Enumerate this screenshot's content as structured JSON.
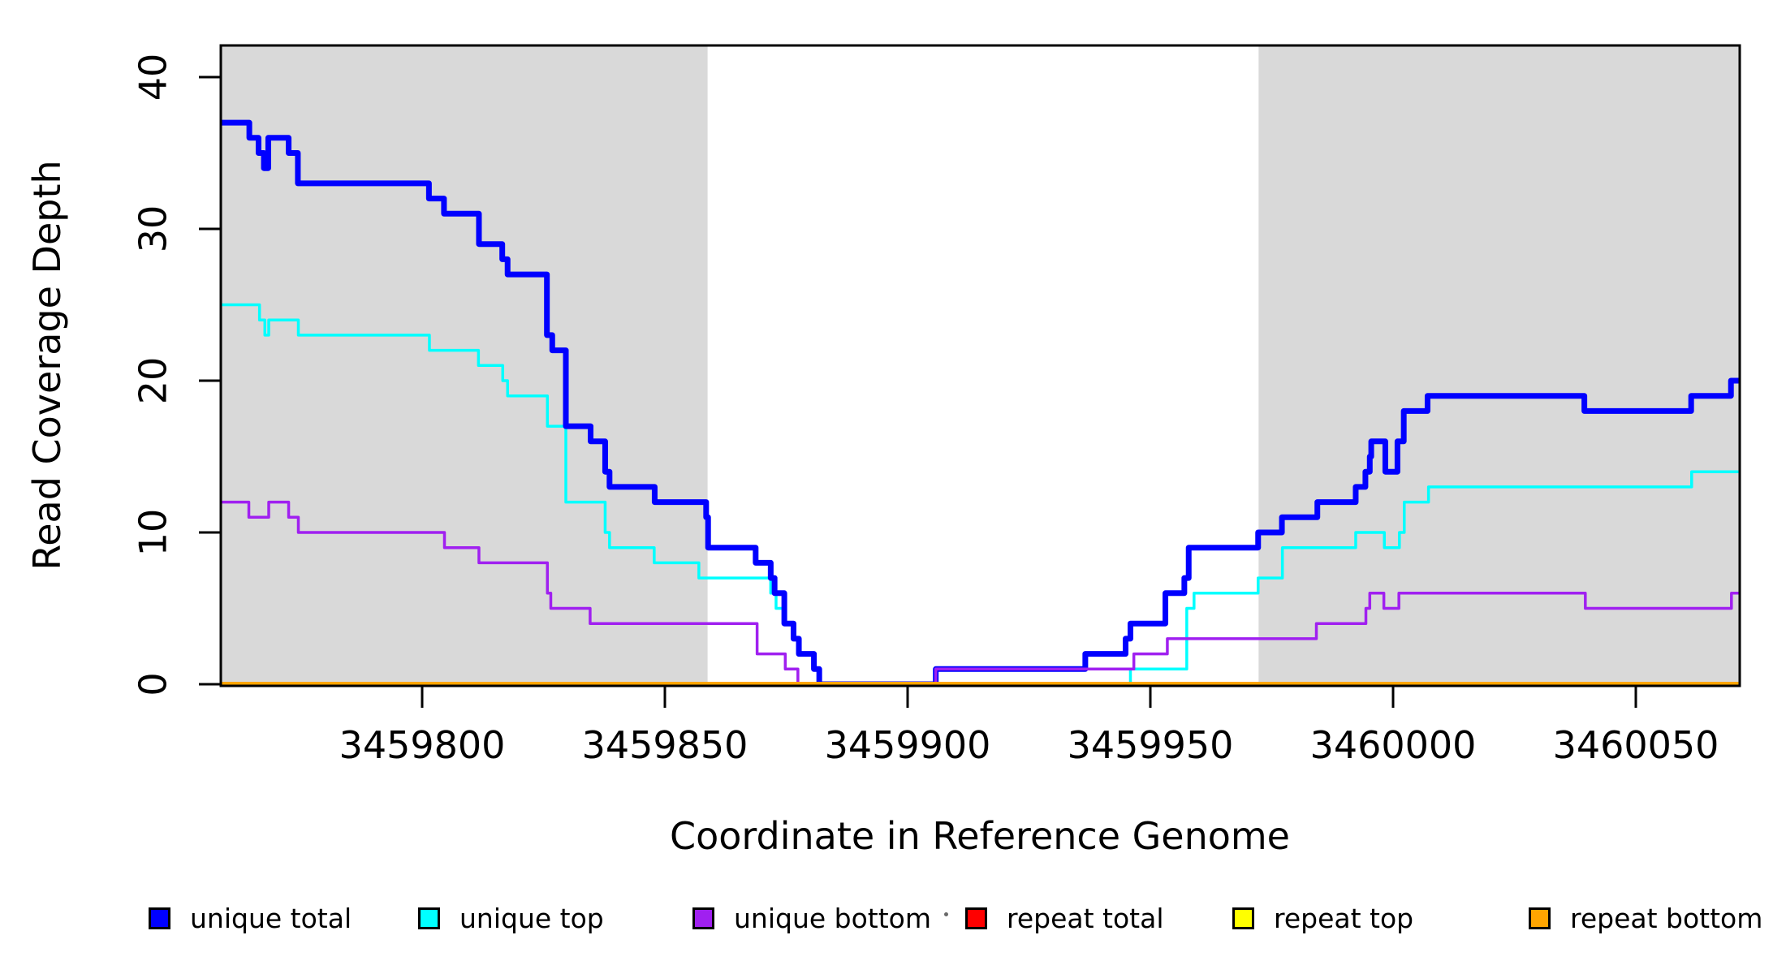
{
  "chart_data": {
    "type": "line",
    "subtype": "step",
    "title": "",
    "xlabel": "Coordinate in Reference Genome",
    "ylabel": "Read Coverage Depth",
    "xlim": [
      3459758.4,
      3460072.0
    ],
    "ylim": [
      0,
      42
    ],
    "x_ticks": [
      3459800,
      3459850,
      3459900,
      3459950,
      3460000,
      3460050
    ],
    "y_ticks": [
      0,
      10,
      20,
      30,
      40
    ],
    "grid": false,
    "plot_bg": "#ffffff",
    "shaded_region_color": "#d9d9d9",
    "background_regions": [
      {
        "name": "shaded-region-left",
        "x0": 3459758.4,
        "x1": 3459858.8
      },
      {
        "name": "shaded-region-right",
        "x0": 3459972.3,
        "x1": 3460072.0
      }
    ],
    "series": [
      {
        "name": "unique total",
        "color": "#0000ff",
        "width": 7,
        "points": [
          [
            3459758.4,
            37
          ],
          [
            3459764.4,
            36
          ],
          [
            3459766.3,
            35
          ],
          [
            3459767.4,
            34
          ],
          [
            3459768.3,
            36
          ],
          [
            3459772.5,
            35
          ],
          [
            3459774.4,
            33
          ],
          [
            3459801.4,
            32
          ],
          [
            3459804.5,
            31
          ],
          [
            3459811.7,
            29
          ],
          [
            3459816.5,
            28
          ],
          [
            3459817.6,
            27
          ],
          [
            3459825.7,
            23
          ],
          [
            3459826.8,
            22
          ],
          [
            3459829.6,
            17
          ],
          [
            3459834.7,
            16
          ],
          [
            3459837.7,
            14
          ],
          [
            3459838.6,
            13
          ],
          [
            3459847.9,
            12
          ],
          [
            3459858.5,
            11
          ],
          [
            3459858.9,
            9
          ],
          [
            3459868.7,
            8
          ],
          [
            3459871.8,
            7
          ],
          [
            3459872.6,
            6
          ],
          [
            3459874.6,
            4
          ],
          [
            3459876.5,
            3
          ],
          [
            3459877.6,
            2
          ],
          [
            3459880.7,
            1
          ],
          [
            3459881.8,
            0
          ],
          [
            3459905.8,
            1
          ],
          [
            3459936.6,
            2
          ],
          [
            3459944.9,
            3
          ],
          [
            3459945.9,
            4
          ],
          [
            3459953.1,
            6
          ],
          [
            3459957.0,
            7
          ],
          [
            3459957.9,
            9
          ],
          [
            3459972.2,
            10
          ],
          [
            3459977.1,
            11
          ],
          [
            3459984.4,
            12
          ],
          [
            3459992.3,
            13
          ],
          [
            3459994.3,
            14
          ],
          [
            3459995.2,
            15
          ],
          [
            3459995.5,
            16
          ],
          [
            3459998.4,
            14
          ],
          [
            3460000.9,
            16
          ],
          [
            3460002.2,
            18
          ],
          [
            3460007.1,
            19
          ],
          [
            3460039.4,
            18
          ],
          [
            3460061.4,
            19
          ],
          [
            3460069.6,
            20
          ]
        ]
      },
      {
        "name": "unique top",
        "color": "#00ffff",
        "width": 3.5,
        "points": [
          [
            3459758.4,
            25
          ],
          [
            3459766.5,
            24
          ],
          [
            3459767.6,
            23
          ],
          [
            3459768.4,
            24
          ],
          [
            3459774.5,
            23
          ],
          [
            3459801.5,
            22
          ],
          [
            3459811.6,
            21
          ],
          [
            3459816.6,
            20
          ],
          [
            3459817.6,
            19
          ],
          [
            3459825.8,
            17
          ],
          [
            3459829.6,
            12
          ],
          [
            3459837.7,
            10
          ],
          [
            3459838.6,
            9
          ],
          [
            3459847.8,
            8
          ],
          [
            3459857.0,
            7
          ],
          [
            3459871.8,
            6
          ],
          [
            3459872.9,
            5
          ],
          [
            3459874.8,
            4
          ],
          [
            3459876.5,
            3
          ],
          [
            3459877.6,
            2
          ],
          [
            3459880.7,
            1
          ],
          [
            3459881.8,
            0
          ],
          [
            3459945.9,
            1
          ],
          [
            3459957.5,
            5
          ],
          [
            3459959.0,
            6
          ],
          [
            3459972.2,
            7
          ],
          [
            3459977.2,
            9
          ],
          [
            3459992.3,
            10
          ],
          [
            3459998.2,
            9
          ],
          [
            3460001.3,
            10
          ],
          [
            3460002.3,
            12
          ],
          [
            3460007.3,
            13
          ],
          [
            3460061.5,
            14
          ]
        ]
      },
      {
        "name": "unique bottom",
        "color": "#a020f0",
        "width": 3.5,
        "points": [
          [
            3459758.4,
            12
          ],
          [
            3459764.3,
            11
          ],
          [
            3459768.4,
            12
          ],
          [
            3459772.5,
            11
          ],
          [
            3459774.5,
            10
          ],
          [
            3459804.6,
            9
          ],
          [
            3459811.7,
            8
          ],
          [
            3459825.8,
            6
          ],
          [
            3459826.5,
            5
          ],
          [
            3459834.6,
            4
          ],
          [
            3459869.0,
            2
          ],
          [
            3459874.8,
            1
          ],
          [
            3459877.4,
            0
          ],
          [
            3459905.8,
            1
          ],
          [
            3459946.6,
            2
          ],
          [
            3459953.5,
            3
          ],
          [
            3459984.2,
            4
          ],
          [
            3459994.4,
            5
          ],
          [
            3459995.2,
            6
          ],
          [
            3459998.1,
            5
          ],
          [
            3460001.2,
            6
          ],
          [
            3460039.6,
            5
          ],
          [
            3460069.7,
            6
          ]
        ]
      },
      {
        "name": "repeat total",
        "color": "#ff0000",
        "width": 3.5,
        "points": [
          [
            3459758.4,
            0
          ]
        ]
      },
      {
        "name": "repeat top",
        "color": "#ffff00",
        "width": 3.5,
        "points": [
          [
            3459758.4,
            0
          ]
        ]
      },
      {
        "name": "repeat bottom",
        "color": "#ffa500",
        "width": 6,
        "points": [
          [
            3459758.4,
            0
          ]
        ]
      }
    ],
    "draw_order": [
      3,
      4,
      1,
      0,
      2,
      5
    ],
    "legend": {
      "position": "bottom",
      "items": [
        {
          "label": "unique total",
          "color": "#0000ff"
        },
        {
          "label": "unique top",
          "color": "#00ffff"
        },
        {
          "label": "unique bottom",
          "color": "#a020f0"
        },
        {
          "label": "repeat total",
          "color": "#ff0000"
        },
        {
          "label": "repeat top",
          "color": "#ffff00"
        },
        {
          "label": "repeat bottom",
          "color": "#ffa500"
        }
      ]
    }
  }
}
